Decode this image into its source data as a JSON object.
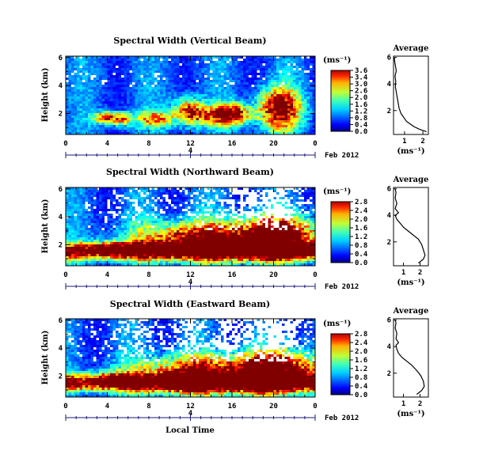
{
  "chart_data": [
    {
      "type": "heatmap",
      "title": "Spectral Width (Vertical Beam)",
      "ylabel": "Height (km)",
      "xticks": [
        "0",
        "4",
        "8",
        "12",
        "16",
        "20",
        "0"
      ],
      "yticks": [
        "6",
        "4",
        "2"
      ],
      "below_axis_label": "4",
      "date_label": "Feb 2012",
      "x_range_hours": [
        0,
        24
      ],
      "y_range_km": [
        0.5,
        6.1
      ],
      "colorbar": {
        "unit": "(ms⁻¹)",
        "ticks": [
          "3.6",
          "3.4",
          "3.0",
          "2.6",
          "2.0",
          "1.6",
          "1.2",
          "0.8",
          "0.4",
          "0.0"
        ],
        "range": [
          0,
          3.6
        ]
      },
      "average": {
        "title": "Average",
        "xlabel": "(ms⁻¹)",
        "xticks": [
          "1",
          "2"
        ],
        "yticks": [
          "6",
          "4",
          "2"
        ],
        "xlim": [
          0.4,
          2.3
        ],
        "ylim": [
          0.2,
          6.1
        ],
        "profile": [
          [
            2.2,
            0.4
          ],
          [
            1.8,
            0.6
          ],
          [
            1.5,
            0.8
          ],
          [
            1.3,
            1.0
          ],
          [
            1.1,
            1.2
          ],
          [
            0.95,
            1.5
          ],
          [
            0.8,
            1.8
          ],
          [
            0.7,
            2.2
          ],
          [
            0.65,
            2.6
          ],
          [
            0.6,
            3.0
          ],
          [
            0.55,
            3.4
          ],
          [
            0.5,
            3.8
          ],
          [
            0.52,
            4.2
          ],
          [
            0.48,
            4.6
          ],
          [
            0.55,
            5.0
          ],
          [
            0.5,
            5.4
          ],
          [
            0.45,
            5.8
          ],
          [
            0.45,
            6.0
          ]
        ]
      }
    },
    {
      "type": "heatmap",
      "title": "Spectral Width (Northward Beam)",
      "ylabel": "Height (km)",
      "xticks": [
        "0",
        "4",
        "8",
        "12",
        "16",
        "20",
        "0"
      ],
      "yticks": [
        "6",
        "4",
        "2"
      ],
      "below_axis_label": "4",
      "date_label": "Feb 2012",
      "x_range_hours": [
        0,
        24
      ],
      "y_range_km": [
        0.5,
        6.1
      ],
      "colorbar": {
        "unit": "(ms⁻¹)",
        "ticks": [
          "2.8",
          "2.4",
          "2.0",
          "1.6",
          "1.2",
          "0.8",
          "0.4",
          "0.0"
        ],
        "range": [
          0,
          2.8
        ]
      },
      "average": {
        "title": "Average",
        "xlabel": "(ms⁻¹)",
        "xticks": [
          "1",
          "2"
        ],
        "yticks": [
          "6",
          "4",
          "2"
        ],
        "xlim": [
          0.4,
          2.5
        ],
        "ylim": [
          0.2,
          6.1
        ],
        "profile": [
          [
            1.9,
            0.4
          ],
          [
            2.2,
            0.7
          ],
          [
            2.3,
            1.0
          ],
          [
            2.2,
            1.4
          ],
          [
            2.1,
            1.8
          ],
          [
            1.9,
            2.2
          ],
          [
            1.6,
            2.5
          ],
          [
            1.3,
            2.8
          ],
          [
            1.0,
            3.1
          ],
          [
            0.8,
            3.4
          ],
          [
            0.6,
            3.7
          ],
          [
            0.5,
            4.0
          ],
          [
            0.7,
            4.2
          ],
          [
            0.5,
            4.5
          ],
          [
            0.6,
            4.9
          ],
          [
            0.5,
            5.3
          ],
          [
            0.55,
            5.7
          ],
          [
            0.5,
            6.0
          ]
        ]
      }
    },
    {
      "type": "heatmap",
      "title": "Spectral Width (Eastward Beam)",
      "ylabel": "Height (km)",
      "xticks": [
        "0",
        "4",
        "8",
        "12",
        "16",
        "20",
        "0"
      ],
      "yticks": [
        "6",
        "4",
        "2"
      ],
      "below_axis_label": "4",
      "date_label": "Feb 2012",
      "xlabel": "Local Time",
      "x_range_hours": [
        0,
        24
      ],
      "y_range_km": [
        0.5,
        6.1
      ],
      "colorbar": {
        "unit": "(ms⁻¹)",
        "ticks": [
          "2.8",
          "2.4",
          "2.0",
          "1.6",
          "1.2",
          "0.8",
          "0.4",
          "0.0"
        ],
        "range": [
          0,
          2.8
        ]
      },
      "average": {
        "title": "Average",
        "xlabel": "(ms⁻¹)",
        "xticks": [
          "1",
          "2"
        ],
        "yticks": [
          "6",
          "4",
          "2"
        ],
        "xlim": [
          0.4,
          2.5
        ],
        "ylim": [
          0.2,
          6.1
        ],
        "profile": [
          [
            1.8,
            0.4
          ],
          [
            2.1,
            0.7
          ],
          [
            2.25,
            1.0
          ],
          [
            2.2,
            1.4
          ],
          [
            2.05,
            1.8
          ],
          [
            1.8,
            2.2
          ],
          [
            1.5,
            2.6
          ],
          [
            1.2,
            2.9
          ],
          [
            0.9,
            3.2
          ],
          [
            0.7,
            3.5
          ],
          [
            0.6,
            3.8
          ],
          [
            0.55,
            4.1
          ],
          [
            0.7,
            4.3
          ],
          [
            0.55,
            4.6
          ],
          [
            0.6,
            5.0
          ],
          [
            0.5,
            5.4
          ],
          [
            0.55,
            5.8
          ],
          [
            0.5,
            6.0
          ]
        ]
      }
    }
  ]
}
